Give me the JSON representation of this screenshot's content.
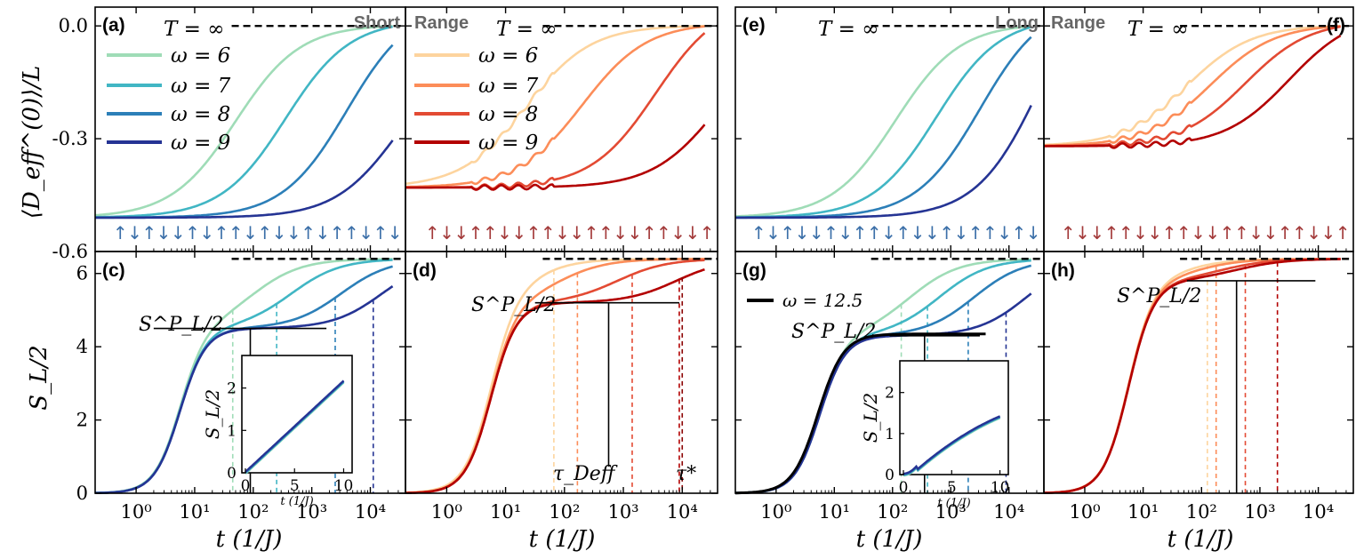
{
  "chart_data": {
    "type": "line",
    "range_labels": {
      "short_left": "Short",
      "short_right": "Range",
      "long_left": "Long",
      "long_right": "Range"
    },
    "temperature_label": "T = ∞",
    "xlabel": "t  (1/J)",
    "ylabel_top": "⟨D_eff^(0)⟩/L",
    "ylabel_bottom": "S_L/2",
    "x_scale": "log",
    "xlim_log10": [
      -0.7,
      4.6
    ],
    "x_ticks": [
      {
        "v": 0,
        "label": "10⁰"
      },
      {
        "v": 1,
        "label": "10¹"
      },
      {
        "v": 2,
        "label": "10²"
      },
      {
        "v": 3,
        "label": "10³"
      },
      {
        "v": 4,
        "label": "10⁴"
      }
    ],
    "top_ylim": [
      -0.6,
      0.05
    ],
    "top_yticks": [
      {
        "v": 0.0,
        "label": "0.0"
      },
      {
        "v": -0.3,
        "label": "-0.3"
      },
      {
        "v": -0.6,
        "label": "-0.6"
      }
    ],
    "bottom_ylim": [
      0,
      6.6
    ],
    "bottom_yticks": [
      {
        "v": 0,
        "label": "0"
      },
      {
        "v": 2,
        "label": "2"
      },
      {
        "v": 4,
        "label": "4"
      },
      {
        "v": 6,
        "label": "6"
      }
    ],
    "saturation_top": 0.0,
    "saturation_bottom": 6.4,
    "legend_labels": [
      "ω = 6",
      "ω = 7",
      "ω = 8",
      "ω = 9"
    ],
    "omega_values": [
      6,
      7,
      8,
      9
    ],
    "blue_colors": [
      "#9fdcb7",
      "#41b6c4",
      "#2c7fb8",
      "#253494"
    ],
    "red_colors": [
      "#fdd49e",
      "#fc8d59",
      "#e34a33",
      "#b30000"
    ],
    "plateau_label": "S^P_L/2",
    "tau_deff_label": "τ_Deff",
    "tau_star_label": "τ*",
    "omega_long_label": "ω = 12.5",
    "inset_xlabel": "t  (1/J)",
    "inset_ylabel": "S_L/2",
    "inset_xticks": [
      "0",
      "5",
      "10"
    ],
    "inset_yticks": [
      "0",
      "1",
      "2"
    ],
    "panels": [
      {
        "id": "a",
        "label": "(a)",
        "palette": "blue",
        "kind": "top",
        "initial": -0.51,
        "spins": "↑↓↑↓↓↑↓↑↑↓↑↓↓↑↓↑↑↓↑↓",
        "series": [
          {
            "omega": 6,
            "t_mid_log10": 1.7,
            "final": 0.0
          },
          {
            "omega": 7,
            "t_mid_log10": 2.55,
            "final": 0.0
          },
          {
            "omega": 8,
            "t_mid_log10": 3.6,
            "final": -0.04
          },
          {
            "omega": 9,
            "t_mid_log10": 4.5,
            "final": -0.29
          }
        ]
      },
      {
        "id": "b",
        "label": "",
        "palette": "red",
        "kind": "top",
        "initial": -0.43,
        "spins": "↑↓↓↑↑↓↓↑↑↓↓↑↑↓↓↑↑↓↓↑",
        "series": [
          {
            "omega": 6,
            "t_mid_log10": 1.35,
            "final": 0.0
          },
          {
            "omega": 7,
            "t_mid_log10": 2.3,
            "final": 0.0
          },
          {
            "omega": 8,
            "t_mid_log10": 3.55,
            "final": -0.01
          },
          {
            "omega": 9,
            "t_mid_log10": 4.6,
            "final": -0.25
          }
        ]
      },
      {
        "id": "e",
        "label": "(e)",
        "palette": "blue",
        "kind": "top",
        "initial": -0.51,
        "spins": "↑↓↑↓↓↑↓↑↑↓↑↓↓↑↓↑↑↓↑↓",
        "series": [
          {
            "omega": 6,
            "t_mid_log10": 2.05,
            "final": 0.0
          },
          {
            "omega": 7,
            "t_mid_log10": 2.75,
            "final": 0.0
          },
          {
            "omega": 8,
            "t_mid_log10": 3.5,
            "final": -0.02
          },
          {
            "omega": 9,
            "t_mid_log10": 4.55,
            "final": -0.19
          }
        ]
      },
      {
        "id": "f",
        "label": "(f)",
        "palette": "red",
        "kind": "top",
        "initial": -0.32,
        "spins": "↑↓↓↑↑↓↓↑↑↓↓↑↑↓↓↑↑↓↓↑",
        "series": [
          {
            "omega": 6,
            "t_mid_log10": 1.75,
            "final": 0.0
          },
          {
            "omega": 7,
            "t_mid_log10": 2.15,
            "final": 0.0
          },
          {
            "omega": 8,
            "t_mid_log10": 2.75,
            "final": 0.0
          },
          {
            "omega": 9,
            "t_mid_log10": 3.5,
            "final": -0.02
          }
        ]
      },
      {
        "id": "c",
        "label": "(c)",
        "palette": "blue",
        "kind": "bottom",
        "plateau": 4.5,
        "plateau_x_log10": [
          0.3,
          3.25
        ],
        "series": [
          {
            "omega": 6,
            "t_mid_log10": 2.0,
            "final": 6.4,
            "dash_log10": 1.65
          },
          {
            "omega": 7,
            "t_mid_log10": 2.65,
            "final": 6.4,
            "dash_log10": 2.4
          },
          {
            "omega": 8,
            "t_mid_log10": 3.5,
            "final": 6.35,
            "dash_log10": 3.4
          },
          {
            "omega": 9,
            "t_mid_log10": 4.2,
            "final": 5.85,
            "dash_log10": 4.05
          }
        ]
      },
      {
        "id": "d",
        "label": "(d)",
        "palette": "red",
        "kind": "bottom",
        "plateau": 5.2,
        "plateau_x_log10": [
          1.5,
          3.95
        ],
        "tau_deff_log10": 2.75,
        "tau_star_log10": 4.0,
        "series": [
          {
            "omega": 6,
            "t_mid_log10": 1.3,
            "final": 6.4,
            "dash_log10": 1.82
          },
          {
            "omega": 7,
            "t_mid_log10": 1.9,
            "final": 6.4,
            "dash_log10": 2.22
          },
          {
            "omega": 8,
            "t_mid_log10": 2.9,
            "final": 6.4,
            "dash_log10": 3.15
          },
          {
            "omega": 9,
            "t_mid_log10": 3.9,
            "final": 6.05,
            "dash_log10": 3.95
          }
        ]
      },
      {
        "id": "g",
        "label": "(g)",
        "palette": "blue",
        "kind": "bottom",
        "plateau": 4.3,
        "plateau_x_log10": [
          1.95,
          3.5
        ],
        "series": [
          {
            "omega": 6,
            "t_mid_log10": 2.3,
            "final": 6.4,
            "dash_log10": 2.15
          },
          {
            "omega": 7,
            "t_mid_log10": 2.8,
            "final": 6.4,
            "dash_log10": 2.6
          },
          {
            "omega": 8,
            "t_mid_log10": 3.4,
            "final": 6.4,
            "dash_log10": 3.3
          },
          {
            "omega": 9,
            "t_mid_log10": 4.3,
            "final": 6.05,
            "dash_log10": 3.95
          }
        ]
      },
      {
        "id": "h",
        "label": "(h)",
        "palette": "red",
        "kind": "bottom",
        "plateau": 5.8,
        "plateau_x_log10": [
          1.75,
          3.95
        ],
        "series": [
          {
            "omega": 6,
            "t_mid_log10": 1.65,
            "final": 6.4,
            "dash_log10": 2.1
          },
          {
            "omega": 7,
            "t_mid_log10": 1.9,
            "final": 6.4,
            "dash_log10": 2.25
          },
          {
            "omega": 8,
            "t_mid_log10": 2.35,
            "final": 6.4,
            "dash_log10": 2.75
          },
          {
            "omega": 9,
            "t_mid_log10": 2.6,
            "final": 6.4,
            "dash_log10": 3.3
          }
        ]
      }
    ]
  }
}
